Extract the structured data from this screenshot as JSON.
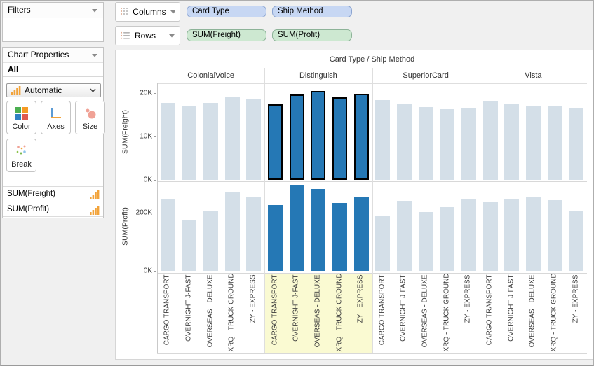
{
  "sidebar": {
    "filters_panel": {
      "title": "Filters"
    },
    "chart_properties_panel": {
      "title": "Chart Properties",
      "subtitle": "All"
    },
    "chart_type_dropdown": {
      "value": "Automatic"
    },
    "buttons": [
      {
        "label": "Color"
      },
      {
        "label": "Axes"
      },
      {
        "label": "Size"
      },
      {
        "label": "Break"
      }
    ],
    "measures": [
      {
        "label": "SUM(Freight)"
      },
      {
        "label": "SUM(Profit)"
      }
    ]
  },
  "shelves": {
    "columns": {
      "label": "Columns",
      "pills": [
        "Card Type",
        "Ship Method"
      ],
      "pill_color": "#c7d7f3",
      "pill_border": "#8ba4d0"
    },
    "rows": {
      "label": "Rows",
      "pills": [
        "SUM(Freight)",
        "SUM(Profit)"
      ],
      "pill_color": "#cde8d1",
      "pill_border": "#8db398"
    }
  },
  "chart_data": {
    "type": "bar",
    "title": "Card Type / Ship Method",
    "column_groups": [
      "ColonialVoice",
      "Distinguish",
      "SuperiorCard",
      "Vista"
    ],
    "categories": [
      "CARGO TRANSPORT",
      "OVERNIGHT J-FAST",
      "OVERSEAS - DELUXE",
      "XRQ - TRUCK GROUND",
      "ZY - EXPRESS"
    ],
    "selected_group": "Distinguish",
    "rows": [
      {
        "measure": "SUM(Freight)",
        "unit": "K",
        "ymax": 22.2,
        "ticks": [
          {
            "value": 0,
            "label": "0K"
          },
          {
            "value": 10,
            "label": "10K"
          },
          {
            "value": 20,
            "label": "20K"
          }
        ],
        "selection_outlined": true,
        "series": [
          {
            "name": "ColonialVoice",
            "values": [
              17.7,
              17.1,
              17.7,
              19.0,
              18.6
            ]
          },
          {
            "name": "Distinguish",
            "values": [
              17.3,
              19.7,
              20.4,
              19.0,
              19.8
            ]
          },
          {
            "name": "SuperiorCard",
            "values": [
              18.3,
              17.5,
              16.7,
              16.3,
              16.6
            ]
          },
          {
            "name": "Vista",
            "values": [
              18.1,
              17.5,
              16.9,
              17.0,
              16.4
            ]
          }
        ]
      },
      {
        "measure": "SUM(Profit)",
        "unit": "K",
        "ymax": 307,
        "ticks": [
          {
            "value": 0,
            "label": "0K"
          },
          {
            "value": 200,
            "label": "200K"
          }
        ],
        "selection_outlined": false,
        "series": [
          {
            "name": "ColonialVoice",
            "values": [
              245,
              173,
              207,
              269,
              254
            ]
          },
          {
            "name": "Distinguish",
            "values": [
              225,
              295,
              280,
              232,
              253
            ]
          },
          {
            "name": "SuperiorCard",
            "values": [
              186,
              240,
              201,
              218,
              247
            ]
          },
          {
            "name": "Vista",
            "values": [
              235,
              246,
              252,
              242,
              205
            ]
          }
        ]
      }
    ],
    "colors": {
      "bar_default": "#d4dfe8",
      "bar_selected": "#2578b5",
      "selection_outline": "#000000",
      "label_highlight": "#fafad2",
      "accent_orange": "#f2a33a"
    }
  }
}
